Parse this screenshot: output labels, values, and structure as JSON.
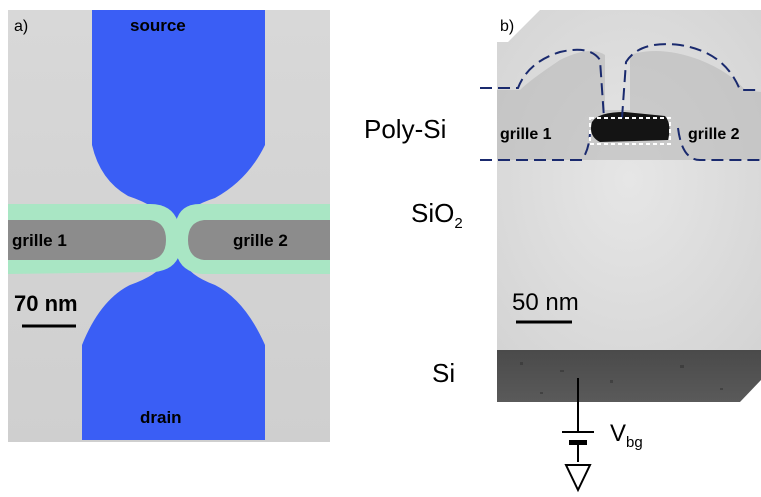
{
  "panel_a": {
    "letter": "a)",
    "source": "source",
    "drain": "drain",
    "gate1": "grille 1",
    "gate2": "grille 2",
    "scale": "70 nm"
  },
  "panel_b": {
    "letter": "b)",
    "gate1": "grille 1",
    "gate2": "grille 2",
    "scale": "50 nm",
    "poly_si": "Poly-Si",
    "sio2": "SiO",
    "sio2_sub": "2",
    "si": "Si",
    "vbg": "V",
    "vbg_sub": "bg"
  },
  "colors": {
    "channel_blue": "#3a5ef5",
    "gate_gray": "#8c8c8c",
    "gate_outline_green": "#a9e6c4",
    "dashed_navy": "#1a2a6e"
  }
}
